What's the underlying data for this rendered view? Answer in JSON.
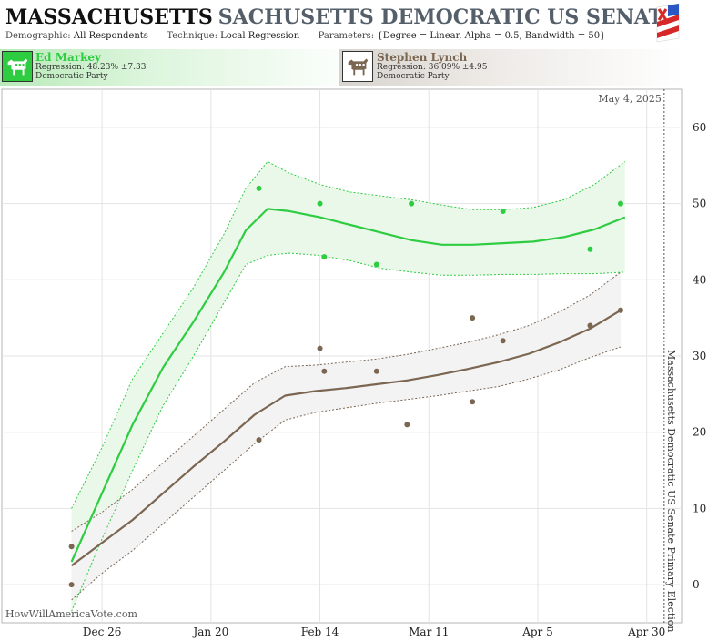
{
  "header": {
    "state": "MASSACHUSETTS",
    "race": "SACHUSETTS DEMOCRATIC US SENATE PRIM",
    "demographic_label": "Demographic:",
    "demographic_value": "All Respondents",
    "technique_label": "Technique:",
    "technique_value": "Local Regression",
    "parameters_label": "Parameters:",
    "parameters_value": "{Degree = Linear, Alpha = 0.5, Bandwidth = 50}"
  },
  "candidates": [
    {
      "name": "Ed Markey",
      "regression": "Regression: 48.23% ±7.33",
      "party": "Democratic Party",
      "color": "#2ecc40",
      "icon": "democratic-donkey-icon"
    },
    {
      "name": "Stephen Lynch",
      "regression": "Regression: 36.09% ±4.95",
      "party": "Democratic Party",
      "color": "#7b6652",
      "icon": "democratic-donkey-icon"
    }
  ],
  "chart_data": {
    "type": "line",
    "date_stamp": "May 4, 2025",
    "right_axis_label": "Massachusetts Democratic US Senate Primary Election",
    "watermark": "HowWillAmericaVote.com",
    "ylim": [
      -5,
      65
    ],
    "y_ticks": [
      "0",
      "10",
      "20",
      "30",
      "40",
      "50",
      "60"
    ],
    "y_tick_values": [
      0,
      10,
      20,
      30,
      40,
      50,
      60
    ],
    "x_ticks": [
      "Dec 26",
      "Jan 20",
      "Feb 14",
      "Mar 11",
      "Apr 5",
      "Apr 30"
    ],
    "x_tick_values": [
      "2024-12-26",
      "2025-01-20",
      "2025-02-14",
      "2025-03-11",
      "2025-04-05",
      "2025-04-30"
    ],
    "xlim": [
      "2024-12-03",
      "2025-05-08"
    ],
    "election_date": "2025-05-04",
    "grid": true,
    "series": [
      {
        "name": "Ed Markey",
        "color": "#2ecc40",
        "band_fill": "#eaf8ea",
        "points": [
          {
            "x": "2025-01-31",
            "y": 52
          },
          {
            "x": "2025-02-14",
            "y": 50
          },
          {
            "x": "2025-02-15",
            "y": 43
          },
          {
            "x": "2025-02-27",
            "y": 42
          },
          {
            "x": "2025-03-07",
            "y": 50
          },
          {
            "x": "2025-03-28",
            "y": 49
          },
          {
            "x": "2025-04-17",
            "y": 44
          },
          {
            "x": "2025-04-24",
            "y": 50
          }
        ],
        "line": [
          {
            "x": "2024-12-19",
            "y": 3
          },
          {
            "x": "2024-12-26",
            "y": 12
          },
          {
            "x": "2025-01-02",
            "y": 21
          },
          {
            "x": "2025-01-09",
            "y": 28.5
          },
          {
            "x": "2025-01-16",
            "y": 34.5
          },
          {
            "x": "2025-01-23",
            "y": 41
          },
          {
            "x": "2025-01-28",
            "y": 46.5
          },
          {
            "x": "2025-02-02",
            "y": 49.3
          },
          {
            "x": "2025-02-07",
            "y": 49
          },
          {
            "x": "2025-02-14",
            "y": 48.2
          },
          {
            "x": "2025-02-21",
            "y": 47.2
          },
          {
            "x": "2025-02-28",
            "y": 46.2
          },
          {
            "x": "2025-03-07",
            "y": 45.2
          },
          {
            "x": "2025-03-14",
            "y": 44.6
          },
          {
            "x": "2025-03-21",
            "y": 44.6
          },
          {
            "x": "2025-03-28",
            "y": 44.8
          },
          {
            "x": "2025-04-04",
            "y": 45.0
          },
          {
            "x": "2025-04-11",
            "y": 45.6
          },
          {
            "x": "2025-04-18",
            "y": 46.6
          },
          {
            "x": "2025-04-25",
            "y": 48.2
          }
        ],
        "upper": [
          {
            "x": "2024-12-19",
            "y": 10
          },
          {
            "x": "2024-12-26",
            "y": 18
          },
          {
            "x": "2025-01-02",
            "y": 27
          },
          {
            "x": "2025-01-09",
            "y": 33
          },
          {
            "x": "2025-01-16",
            "y": 39
          },
          {
            "x": "2025-01-23",
            "y": 46
          },
          {
            "x": "2025-01-28",
            "y": 52
          },
          {
            "x": "2025-02-02",
            "y": 55.5
          },
          {
            "x": "2025-02-07",
            "y": 54
          },
          {
            "x": "2025-02-14",
            "y": 52.5
          },
          {
            "x": "2025-02-21",
            "y": 51.5
          },
          {
            "x": "2025-02-28",
            "y": 51
          },
          {
            "x": "2025-03-07",
            "y": 50.5
          },
          {
            "x": "2025-03-14",
            "y": 49.8
          },
          {
            "x": "2025-03-21",
            "y": 49.2
          },
          {
            "x": "2025-03-28",
            "y": 49.2
          },
          {
            "x": "2025-04-04",
            "y": 49.5
          },
          {
            "x": "2025-04-11",
            "y": 50.5
          },
          {
            "x": "2025-04-18",
            "y": 52.5
          },
          {
            "x": "2025-04-25",
            "y": 55.5
          }
        ],
        "lower": [
          {
            "x": "2024-12-19",
            "y": -3.5
          },
          {
            "x": "2024-12-26",
            "y": 6
          },
          {
            "x": "2025-01-02",
            "y": 15
          },
          {
            "x": "2025-01-09",
            "y": 23.5
          },
          {
            "x": "2025-01-16",
            "y": 30
          },
          {
            "x": "2025-01-23",
            "y": 37
          },
          {
            "x": "2025-01-28",
            "y": 42
          },
          {
            "x": "2025-02-02",
            "y": 43.2
          },
          {
            "x": "2025-02-07",
            "y": 43.5
          },
          {
            "x": "2025-02-14",
            "y": 43.2
          },
          {
            "x": "2025-02-21",
            "y": 42.5
          },
          {
            "x": "2025-02-28",
            "y": 41.5
          },
          {
            "x": "2025-03-07",
            "y": 41
          },
          {
            "x": "2025-03-14",
            "y": 40.6
          },
          {
            "x": "2025-03-21",
            "y": 40.6
          },
          {
            "x": "2025-03-28",
            "y": 40.7
          },
          {
            "x": "2025-04-04",
            "y": 40.7
          },
          {
            "x": "2025-04-11",
            "y": 40.8
          },
          {
            "x": "2025-04-18",
            "y": 40.8
          },
          {
            "x": "2025-04-25",
            "y": 41
          }
        ]
      },
      {
        "name": "Stephen Lynch",
        "color": "#7b6652",
        "band_fill": "#f3f3f3",
        "points": [
          {
            "x": "2024-12-19",
            "y": 5
          },
          {
            "x": "2024-12-19",
            "y": 0
          },
          {
            "x": "2025-01-31",
            "y": 19
          },
          {
            "x": "2025-02-14",
            "y": 31
          },
          {
            "x": "2025-02-15",
            "y": 28
          },
          {
            "x": "2025-02-27",
            "y": 28
          },
          {
            "x": "2025-03-06",
            "y": 21
          },
          {
            "x": "2025-03-21",
            "y": 24
          },
          {
            "x": "2025-03-21",
            "y": 35
          },
          {
            "x": "2025-03-28",
            "y": 32
          },
          {
            "x": "2025-04-17",
            "y": 34
          },
          {
            "x": "2025-04-24",
            "y": 36
          }
        ],
        "line": [
          {
            "x": "2024-12-19",
            "y": 2.5
          },
          {
            "x": "2024-12-26",
            "y": 5.5
          },
          {
            "x": "2025-01-02",
            "y": 8.5
          },
          {
            "x": "2025-01-09",
            "y": 12
          },
          {
            "x": "2025-01-16",
            "y": 15.5
          },
          {
            "x": "2025-01-23",
            "y": 18.8
          },
          {
            "x": "2025-01-30",
            "y": 22.3
          },
          {
            "x": "2025-02-06",
            "y": 24.8
          },
          {
            "x": "2025-02-13",
            "y": 25.4
          },
          {
            "x": "2025-02-20",
            "y": 25.8
          },
          {
            "x": "2025-02-27",
            "y": 26.3
          },
          {
            "x": "2025-03-06",
            "y": 26.8
          },
          {
            "x": "2025-03-13",
            "y": 27.5
          },
          {
            "x": "2025-03-20",
            "y": 28.3
          },
          {
            "x": "2025-03-27",
            "y": 29.2
          },
          {
            "x": "2025-04-03",
            "y": 30.3
          },
          {
            "x": "2025-04-10",
            "y": 31.8
          },
          {
            "x": "2025-04-17",
            "y": 33.6
          },
          {
            "x": "2025-04-24",
            "y": 36
          }
        ],
        "upper": [
          {
            "x": "2024-12-19",
            "y": 7
          },
          {
            "x": "2024-12-26",
            "y": 9.5
          },
          {
            "x": "2025-01-02",
            "y": 12.5
          },
          {
            "x": "2025-01-09",
            "y": 16
          },
          {
            "x": "2025-01-16",
            "y": 19.5
          },
          {
            "x": "2025-01-23",
            "y": 23
          },
          {
            "x": "2025-01-30",
            "y": 26.5
          },
          {
            "x": "2025-02-06",
            "y": 28.6
          },
          {
            "x": "2025-02-13",
            "y": 28.8
          },
          {
            "x": "2025-02-20",
            "y": 29.2
          },
          {
            "x": "2025-02-27",
            "y": 29.6
          },
          {
            "x": "2025-03-06",
            "y": 30.2
          },
          {
            "x": "2025-03-13",
            "y": 31
          },
          {
            "x": "2025-03-20",
            "y": 31.8
          },
          {
            "x": "2025-03-27",
            "y": 32.8
          },
          {
            "x": "2025-04-03",
            "y": 34
          },
          {
            "x": "2025-04-10",
            "y": 35.8
          },
          {
            "x": "2025-04-17",
            "y": 38
          },
          {
            "x": "2025-04-24",
            "y": 41
          }
        ],
        "lower": [
          {
            "x": "2024-12-19",
            "y": -2
          },
          {
            "x": "2024-12-26",
            "y": 1.5
          },
          {
            "x": "2025-01-02",
            "y": 4.5
          },
          {
            "x": "2025-01-09",
            "y": 8
          },
          {
            "x": "2025-01-16",
            "y": 11.5
          },
          {
            "x": "2025-01-23",
            "y": 15
          },
          {
            "x": "2025-01-30",
            "y": 18.5
          },
          {
            "x": "2025-02-06",
            "y": 21.6
          },
          {
            "x": "2025-02-13",
            "y": 22.6
          },
          {
            "x": "2025-02-20",
            "y": 23.2
          },
          {
            "x": "2025-02-27",
            "y": 23.8
          },
          {
            "x": "2025-03-06",
            "y": 24.3
          },
          {
            "x": "2025-03-13",
            "y": 24.8
          },
          {
            "x": "2025-03-20",
            "y": 25.4
          },
          {
            "x": "2025-03-27",
            "y": 26
          },
          {
            "x": "2025-04-03",
            "y": 27
          },
          {
            "x": "2025-04-10",
            "y": 28.2
          },
          {
            "x": "2025-04-17",
            "y": 29.8
          },
          {
            "x": "2025-04-24",
            "y": 31.2
          }
        ]
      }
    ]
  }
}
